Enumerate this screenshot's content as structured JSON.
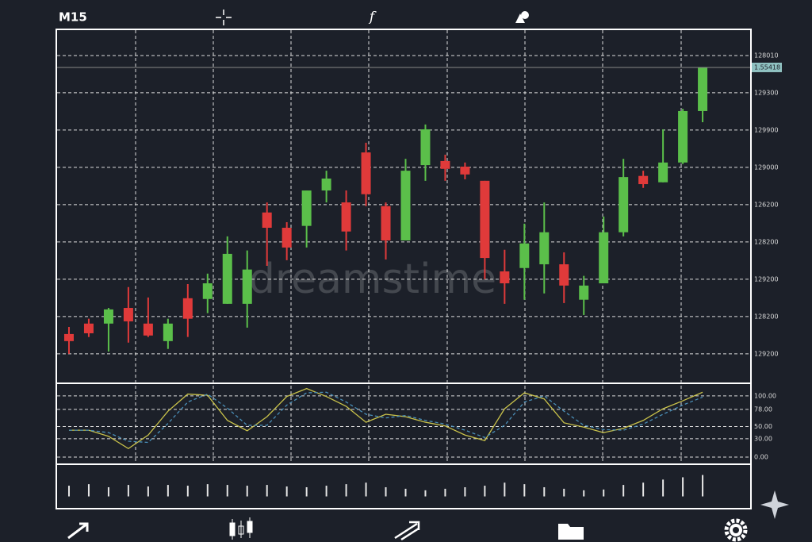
{
  "toolbar": {
    "timeframe": "M15",
    "function_icon": "f"
  },
  "watermark": "dreamstime",
  "chart_data": [
    {
      "type": "candlestick",
      "categories": [
        null,
        null,
        null,
        null,
        null,
        null,
        null,
        null,
        null,
        null,
        null,
        null,
        null,
        null,
        null,
        null,
        null,
        null,
        null,
        null,
        null,
        null,
        null,
        null,
        null,
        null,
        null,
        null,
        null,
        null,
        null,
        null,
        null
      ],
      "open": [
        0.53,
        0.81,
        0.81,
        1.23,
        0.81,
        0.34,
        1.49,
        1.47,
        1.34,
        1.34,
        3.79,
        3.38,
        3.43,
        4.38,
        4.06,
        5.4,
        3.96,
        3.04,
        5.06,
        5.17,
        5.02,
        4.64,
        2.21,
        2.3,
        2.4,
        2.4,
        1.45,
        1.89,
        3.26,
        4.77,
        4.6,
        5.13,
        6.51
      ],
      "high": [
        0.72,
        0.94,
        1.23,
        1.79,
        1.51,
        0.94,
        1.87,
        2.15,
        3.15,
        2.77,
        4.06,
        3.53,
        4.38,
        4.91,
        4.38,
        5.66,
        4.06,
        5.23,
        6.15,
        5.34,
        5.13,
        4.64,
        2.79,
        3.49,
        4.06,
        2.72,
        2.09,
        3.68,
        5.23,
        4.91,
        6.02,
        6.57,
        7.68
      ],
      "low": [
        0,
        0.45,
        0.06,
        0.3,
        0.45,
        0.13,
        0.45,
        1.09,
        1.34,
        0.7,
        2.36,
        2.51,
        2.85,
        4.06,
        2.77,
        3.96,
        2.53,
        3.04,
        4.64,
        4.64,
        4.68,
        2.0,
        1.34,
        1.45,
        1.62,
        1.36,
        1.04,
        1.89,
        3.15,
        4.45,
        4.6,
        5.09,
        6.21
      ],
      "close": [
        0.34,
        0.55,
        1.19,
        0.87,
        0.49,
        0.81,
        0.94,
        1.89,
        2.68,
        2.26,
        3.38,
        2.85,
        4.38,
        4.7,
        3.28,
        4.28,
        3.04,
        4.91,
        6.02,
        4.96,
        4.81,
        2.57,
        1.89,
        2.96,
        3.26,
        1.83,
        1.83,
        3.26,
        4.74,
        4.55,
        5.13,
        6.51,
        7.68
      ],
      "up_color": "#5bbf4a",
      "down_color": "#e03a3a",
      "ylim": [
        -0.77,
        8.68
      ],
      "yticks": [
        {
          "value": 8,
          "label": "128010"
        },
        {
          "value": 7,
          "label": "129300"
        },
        {
          "value": 6,
          "label": "129900"
        },
        {
          "value": 5,
          "label": "129000"
        },
        {
          "value": 4,
          "label": "126200"
        },
        {
          "value": 3,
          "label": "128200"
        },
        {
          "value": 2,
          "label": "129200"
        },
        {
          "value": 1,
          "label": "128200"
        },
        {
          "value": 0,
          "label": "129200"
        }
      ],
      "grid": true,
      "price_marker": "1.55418"
    },
    {
      "type": "line",
      "categories": [
        null,
        null,
        null,
        null,
        null,
        null,
        null,
        null,
        null,
        null,
        null,
        null,
        null,
        null,
        null,
        null,
        null,
        null,
        null,
        null,
        null,
        null,
        null,
        null,
        null,
        null,
        null,
        null,
        null,
        null,
        null,
        null,
        null
      ],
      "series": [
        {
          "color": "#c9c24a",
          "dashed": false,
          "values": [
            44,
            44,
            34,
            14,
            36,
            75,
            103,
            101,
            60,
            43,
            66,
            99,
            112,
            99,
            83,
            57,
            70,
            66,
            57,
            51,
            36,
            27,
            79,
            105,
            95,
            56,
            49,
            40,
            47,
            60,
            79,
            92,
            106
          ]
        },
        {
          "color": "#4a8fb8",
          "dashed": true,
          "values": [
            44,
            44,
            40,
            26,
            24,
            55,
            90,
            103,
            80,
            52,
            52,
            85,
            105,
            106,
            90,
            70,
            64,
            68,
            60,
            54,
            44,
            32,
            52,
            90,
            100,
            75,
            52,
            45,
            44,
            54,
            70,
            85,
            98
          ]
        }
      ],
      "ylim": [
        -9,
        118
      ],
      "yticks": [
        {
          "value": 100,
          "label": "100.00"
        },
        {
          "value": 78,
          "label": "78.00"
        },
        {
          "value": 50,
          "label": "50.00"
        },
        {
          "value": 30,
          "label": "30.00"
        },
        {
          "value": 0,
          "label": "0.00"
        }
      ],
      "grid": true
    },
    {
      "type": "bar",
      "categories": [
        null,
        null,
        null,
        null,
        null,
        null,
        null,
        null,
        null,
        null,
        null,
        null,
        null,
        null,
        null,
        null,
        null,
        null,
        null,
        null,
        null,
        null,
        null,
        null,
        null,
        null,
        null,
        null,
        null,
        null,
        null,
        null,
        null
      ],
      "values": [
        14,
        16,
        12,
        15,
        13,
        15,
        14,
        16,
        15,
        14,
        15,
        13,
        12,
        14,
        16,
        18,
        12,
        10,
        8,
        10,
        12,
        14,
        18,
        16,
        12,
        10,
        8,
        9,
        15,
        18,
        22,
        25,
        28
      ],
      "color": "#e6e6e6",
      "ylim": [
        -15,
        40
      ]
    }
  ]
}
